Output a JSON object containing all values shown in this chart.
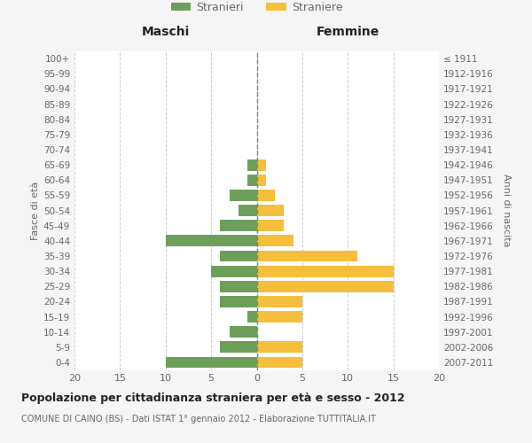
{
  "age_groups": [
    "0-4",
    "5-9",
    "10-14",
    "15-19",
    "20-24",
    "25-29",
    "30-34",
    "35-39",
    "40-44",
    "45-49",
    "50-54",
    "55-59",
    "60-64",
    "65-69",
    "70-74",
    "75-79",
    "80-84",
    "85-89",
    "90-94",
    "95-99",
    "100+"
  ],
  "birth_years": [
    "2007-2011",
    "2002-2006",
    "1997-2001",
    "1992-1996",
    "1987-1991",
    "1982-1986",
    "1977-1981",
    "1972-1976",
    "1967-1971",
    "1962-1966",
    "1957-1961",
    "1952-1956",
    "1947-1951",
    "1942-1946",
    "1937-1941",
    "1932-1936",
    "1927-1931",
    "1922-1926",
    "1917-1921",
    "1912-1916",
    "≤ 1911"
  ],
  "males": [
    10,
    4,
    3,
    1,
    4,
    4,
    5,
    4,
    10,
    4,
    2,
    3,
    1,
    1,
    0,
    0,
    0,
    0,
    0,
    0,
    0
  ],
  "females": [
    5,
    5,
    0,
    5,
    5,
    15,
    15,
    11,
    4,
    3,
    3,
    2,
    1,
    1,
    0,
    0,
    0,
    0,
    0,
    0,
    0
  ],
  "male_color": "#6d9f5b",
  "female_color": "#f5be3c",
  "bar_height": 0.75,
  "xlim": 20,
  "title": "Popolazione per cittadinanza straniera per età e sesso - 2012",
  "subtitle": "COMUNE DI CAINO (BS) - Dati ISTAT 1° gennaio 2012 - Elaborazione TUTTITALIA.IT",
  "legend_male": "Stranieri",
  "legend_female": "Straniere",
  "header_left": "Maschi",
  "header_right": "Femmine",
  "ylabel_left": "Fasce di età",
  "ylabel_right": "Anni di nascita",
  "bg_color": "#f5f5f5",
  "plot_bg": "#ffffff",
  "grid_color": "#cccccc",
  "text_color": "#666666",
  "title_color": "#222222"
}
